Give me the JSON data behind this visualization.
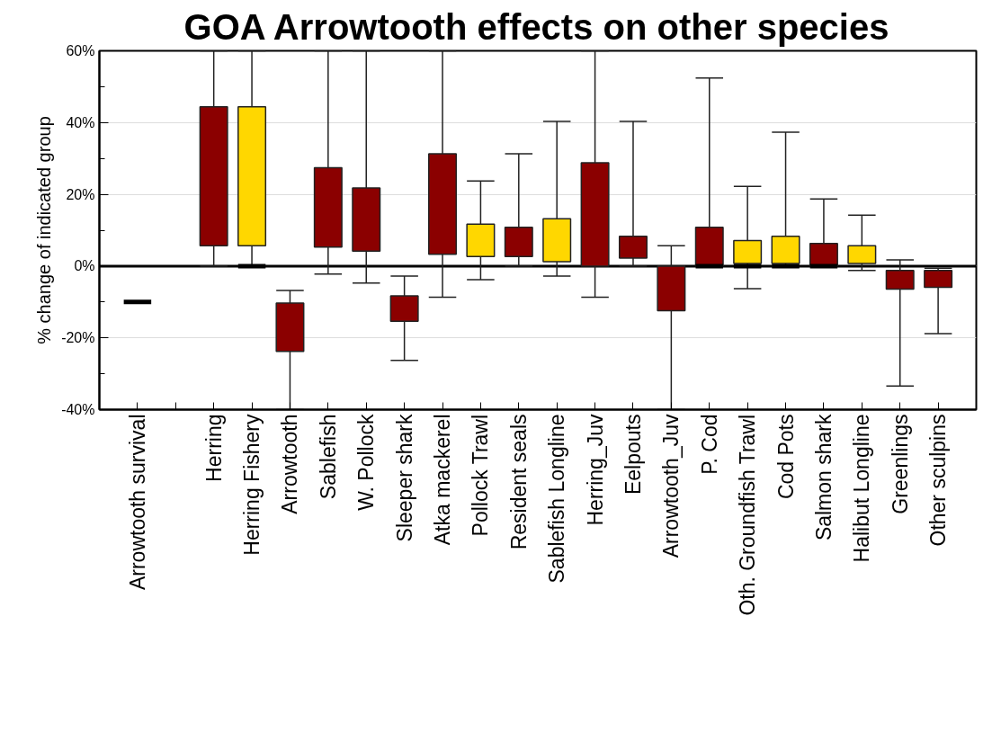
{
  "chart_data": {
    "type": "box",
    "title": "GOA Arrowtooth effects on other species",
    "ylabel": "% change of indicated group",
    "categories": [
      "Arrowtooth survival",
      null,
      "Herring",
      "Herring Fishery",
      "Arrowtooth",
      "Sablefish",
      "W. Pollock",
      "Sleeper shark",
      "Atka mackerel",
      "Pollock Trawl",
      "Resident seals",
      "Sablefish Longline",
      "Herring_Juv",
      "Eelpouts",
      "Arrowtooth_Juv",
      "P. Cod",
      "Oth. Groundfish Trawl",
      "Cod Pots",
      "Salmon shark",
      "Halibut Longline",
      "Greenlings",
      "Other sculpins"
    ],
    "boxes": [
      {
        "low": -10,
        "q1": -10,
        "median": -10,
        "q3": -10,
        "high": -10
      },
      null,
      {
        "low": 0,
        "q1": 5.7,
        "median": null,
        "q3": 44.4,
        "high": 60
      },
      {
        "low": 0,
        "q1": 5.7,
        "median": 0,
        "q3": 44.4,
        "high": 60
      },
      {
        "low": -40,
        "q1": -23.8,
        "median": null,
        "q3": -10.3,
        "high": -6.8
      },
      {
        "low": -2.2,
        "q1": 5.3,
        "median": null,
        "q3": 27.4,
        "high": 60
      },
      {
        "low": -4.7,
        "q1": 4.2,
        "median": null,
        "q3": 21.8,
        "high": 60
      },
      {
        "low": -26.3,
        "q1": -15.4,
        "median": null,
        "q3": -8.3,
        "high": -2.8
      },
      {
        "low": -8.7,
        "q1": 3.3,
        "median": null,
        "q3": 31.3,
        "high": 60
      },
      {
        "low": -3.8,
        "q1": 2.7,
        "median": null,
        "q3": 11.7,
        "high": 23.7
      },
      {
        "low": 0,
        "q1": 2.7,
        "median": null,
        "q3": 10.8,
        "high": 31.3
      },
      {
        "low": -2.8,
        "q1": 1.2,
        "median": null,
        "q3": 13.2,
        "high": 40.3
      },
      {
        "low": -8.7,
        "q1": 0,
        "median": null,
        "q3": 28.8,
        "high": 60
      },
      {
        "low": 0,
        "q1": 2.2,
        "median": null,
        "q3": 8.3,
        "high": 40.3
      },
      {
        "low": -40,
        "q1": -12.4,
        "median": null,
        "q3": 0,
        "high": 5.7
      },
      {
        "low": 0,
        "q1": 0,
        "median": 0,
        "q3": 10.8,
        "high": 52.4
      },
      {
        "low": -6.3,
        "q1": 0.7,
        "median": 0,
        "q3": 7.1,
        "high": 22.2
      },
      {
        "low": 0,
        "q1": 0.7,
        "median": 0,
        "q3": 8.3,
        "high": 37.3
      },
      {
        "low": 0,
        "q1": 0,
        "median": 0,
        "q3": 6.3,
        "high": 18.7
      },
      {
        "low": -1.2,
        "q1": 0.7,
        "median": null,
        "q3": 5.7,
        "high": 14.2
      },
      {
        "low": -33.4,
        "q1": -6.4,
        "median": null,
        "q3": -1.2,
        "high": 1.7
      },
      {
        "low": -18.8,
        "q1": -5.9,
        "median": null,
        "q3": -1.2,
        "high": -0.6
      }
    ],
    "colors": [
      "#000000",
      null,
      "#8b0000",
      "#ffd700",
      "#8b0000",
      "#8b0000",
      "#8b0000",
      "#8b0000",
      "#8b0000",
      "#ffd700",
      "#8b0000",
      "#ffd700",
      "#8b0000",
      "#8b0000",
      "#8b0000",
      "#8b0000",
      "#ffd700",
      "#ffd700",
      "#8b0000",
      "#ffd700",
      "#8b0000",
      "#8b0000"
    ],
    "ylim": [
      -40,
      60
    ],
    "yticks": [
      {
        "value": -40,
        "label": "-40%"
      },
      {
        "value": -20,
        "label": "-20%"
      },
      {
        "value": 0,
        "label": "0%"
      },
      {
        "value": 20,
        "label": "20%"
      },
      {
        "value": 40,
        "label": "40%"
      },
      {
        "value": 60,
        "label": "60%"
      }
    ],
    "grid": "y",
    "ref_lines": [
      {
        "axis": "y",
        "value": 0,
        "color": "#000000"
      }
    ]
  }
}
